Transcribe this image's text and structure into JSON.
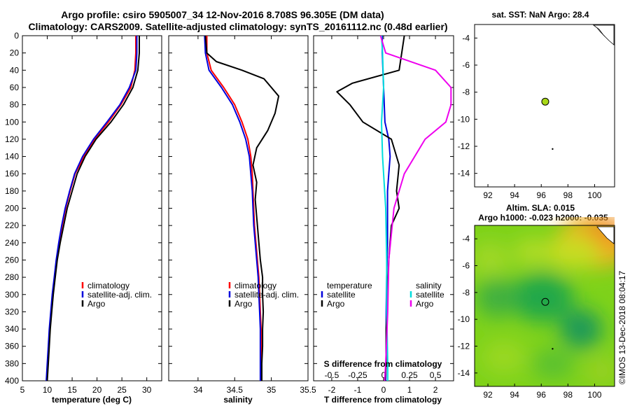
{
  "title": {
    "line1": "Argo profile: csiro 5905007_34 12-Nov-2016 8.708S 96.305E (DM data)",
    "line2": "Climatology: CARS2009. Satellite-adjusted climatology: synTS_20161112.nc (0.48d earlier)"
  },
  "colors": {
    "climatology": "#ff0000",
    "satellite": "#0000dd",
    "argo": "#000000",
    "sat_salinity": "#00dddd",
    "clim_salinity": "#ee00ee",
    "float_marker": "#a8d818"
  },
  "credit": "©IMOS 13-Dec-2018 08:04:17",
  "chart_data": [
    {
      "id": "temperature",
      "type": "line",
      "xlabel": "temperature (deg C)",
      "xlim": [
        5,
        33
      ],
      "xticks": [
        5,
        10,
        15,
        20,
        25,
        30
      ],
      "ylim": [
        0,
        400
      ],
      "yticks": [
        0,
        20,
        40,
        60,
        80,
        100,
        120,
        140,
        160,
        180,
        200,
        220,
        240,
        260,
        280,
        300,
        320,
        340,
        360,
        380,
        400
      ],
      "legend": [
        "climatology",
        "satellite-adj. clim.",
        "Argo"
      ],
      "series": [
        {
          "name": "climatology",
          "color": "#ff0000",
          "points": [
            [
              27.8,
              0
            ],
            [
              27.8,
              20
            ],
            [
              27.6,
              40
            ],
            [
              26.8,
              60
            ],
            [
              24.8,
              80
            ],
            [
              22.3,
              100
            ],
            [
              19.5,
              120
            ],
            [
              17.4,
              140
            ],
            [
              15.6,
              160
            ],
            [
              14.6,
              180
            ],
            [
              13.7,
              200
            ],
            [
              13.0,
              220
            ],
            [
              12.4,
              240
            ],
            [
              11.9,
              260
            ],
            [
              11.5,
              280
            ],
            [
              11.1,
              300
            ],
            [
              10.8,
              320
            ],
            [
              10.5,
              340
            ],
            [
              10.3,
              360
            ],
            [
              10.1,
              380
            ],
            [
              9.9,
              400
            ]
          ]
        },
        {
          "name": "satellite-adj. clim.",
          "color": "#0000dd",
          "points": [
            [
              28.0,
              0
            ],
            [
              28.0,
              20
            ],
            [
              27.8,
              40
            ],
            [
              26.5,
              60
            ],
            [
              24.6,
              80
            ],
            [
              22.0,
              100
            ],
            [
              19.3,
              120
            ],
            [
              17.1,
              140
            ],
            [
              15.5,
              160
            ],
            [
              14.5,
              180
            ],
            [
              13.6,
              200
            ],
            [
              12.9,
              220
            ],
            [
              12.3,
              240
            ],
            [
              11.8,
              260
            ],
            [
              11.4,
              280
            ],
            [
              11.0,
              300
            ],
            [
              10.7,
              320
            ],
            [
              10.4,
              340
            ],
            [
              10.2,
              360
            ],
            [
              10.0,
              380
            ],
            [
              9.8,
              400
            ]
          ]
        },
        {
          "name": "Argo",
          "color": "#000000",
          "points": [
            [
              28.5,
              0
            ],
            [
              28.5,
              20
            ],
            [
              28.2,
              40
            ],
            [
              27.2,
              60
            ],
            [
              25.3,
              80
            ],
            [
              22.8,
              100
            ],
            [
              19.8,
              120
            ],
            [
              17.6,
              140
            ],
            [
              16.0,
              160
            ],
            [
              15.0,
              180
            ],
            [
              14.0,
              200
            ],
            [
              13.3,
              220
            ],
            [
              12.6,
              240
            ],
            [
              12.0,
              260
            ],
            [
              11.6,
              280
            ],
            [
              11.2,
              300
            ],
            [
              10.9,
              320
            ],
            [
              10.6,
              340
            ],
            [
              10.4,
              360
            ],
            [
              10.2,
              380
            ],
            [
              10.0,
              400
            ]
          ]
        }
      ]
    },
    {
      "id": "salinity",
      "type": "line",
      "xlabel": "salinity",
      "xlim": [
        33.6,
        35.5
      ],
      "xticks": [
        34,
        34.5,
        35,
        35.5
      ],
      "ylim": [
        0,
        400
      ],
      "legend": [
        "climatology",
        "satellite-adj. clim.",
        "Argo"
      ],
      "series": [
        {
          "name": "climatology",
          "color": "#ff0000",
          "points": [
            [
              34.12,
              0
            ],
            [
              34.12,
              20
            ],
            [
              34.18,
              40
            ],
            [
              34.35,
              60
            ],
            [
              34.5,
              80
            ],
            [
              34.6,
              100
            ],
            [
              34.68,
              120
            ],
            [
              34.72,
              140
            ],
            [
              34.74,
              160
            ],
            [
              34.75,
              180
            ],
            [
              34.76,
              200
            ],
            [
              34.77,
              220
            ],
            [
              34.79,
              240
            ],
            [
              34.81,
              260
            ],
            [
              34.83,
              280
            ],
            [
              34.84,
              300
            ],
            [
              34.85,
              320
            ],
            [
              34.86,
              340
            ],
            [
              34.86,
              360
            ],
            [
              34.86,
              380
            ],
            [
              34.86,
              400
            ]
          ]
        },
        {
          "name": "satellite-adj. clim.",
          "color": "#0000dd",
          "points": [
            [
              34.09,
              0
            ],
            [
              34.1,
              20
            ],
            [
              34.15,
              40
            ],
            [
              34.32,
              60
            ],
            [
              34.47,
              80
            ],
            [
              34.57,
              100
            ],
            [
              34.65,
              120
            ],
            [
              34.7,
              140
            ],
            [
              34.72,
              160
            ],
            [
              34.74,
              180
            ],
            [
              34.75,
              200
            ],
            [
              34.76,
              220
            ],
            [
              34.78,
              240
            ],
            [
              34.8,
              260
            ],
            [
              34.82,
              280
            ],
            [
              34.83,
              300
            ],
            [
              34.84,
              320
            ],
            [
              34.85,
              340
            ],
            [
              34.85,
              360
            ],
            [
              34.85,
              380
            ],
            [
              34.85,
              400
            ]
          ]
        },
        {
          "name": "Argo",
          "color": "#000000",
          "points": [
            [
              34.1,
              0
            ],
            [
              34.12,
              20
            ],
            [
              34.25,
              30
            ],
            [
              34.6,
              40
            ],
            [
              34.9,
              50
            ],
            [
              35.1,
              70
            ],
            [
              35.05,
              90
            ],
            [
              34.95,
              110
            ],
            [
              34.8,
              130
            ],
            [
              34.75,
              150
            ],
            [
              34.8,
              170
            ],
            [
              34.78,
              190
            ],
            [
              34.8,
              210
            ],
            [
              34.83,
              240
            ],
            [
              34.85,
              260
            ],
            [
              34.88,
              280
            ],
            [
              34.88,
              300
            ],
            [
              34.89,
              320
            ],
            [
              34.88,
              340
            ],
            [
              34.88,
              360
            ],
            [
              34.87,
              380
            ],
            [
              34.87,
              400
            ]
          ]
        }
      ]
    },
    {
      "id": "difference",
      "type": "line",
      "xlabel": "T difference from climatology",
      "xlim": [
        -2.7,
        2.7
      ],
      "xticks": [
        -2,
        -1,
        0,
        1,
        2
      ],
      "xtick_labels": [
        "-2",
        "-1",
        "0",
        "1",
        "2"
      ],
      "s_axis_label": "S difference from climatology",
      "s_ticks": [
        -0.5,
        -0.25,
        0,
        0.25,
        0.5
      ],
      "s_tick_labels": [
        "-0.5",
        "-0.25",
        "0",
        "0.25",
        "0.5"
      ],
      "ylim": [
        0,
        400
      ],
      "legend_titles": [
        "temperature",
        "salinity"
      ],
      "legend": [
        "satellite",
        "Argo",
        "satellite",
        "Argo"
      ],
      "series": [
        {
          "name": "T satellite",
          "color": "#0000dd",
          "points": [
            [
              -0.05,
              0
            ],
            [
              -0.05,
              20
            ],
            [
              0.0,
              60
            ],
            [
              0.05,
              100
            ],
            [
              0.2,
              120
            ],
            [
              0.25,
              140
            ],
            [
              0.2,
              160
            ],
            [
              0.15,
              180
            ],
            [
              0.15,
              200
            ],
            [
              0.15,
              240
            ],
            [
              0.12,
              280
            ],
            [
              0.1,
              320
            ],
            [
              0.1,
              360
            ],
            [
              0.08,
              400
            ]
          ]
        },
        {
          "name": "T Argo",
          "color": "#000000",
          "points": [
            [
              0.8,
              0
            ],
            [
              0.7,
              20
            ],
            [
              0.6,
              40
            ],
            [
              -1.2,
              55
            ],
            [
              -1.8,
              65
            ],
            [
              -1.3,
              80
            ],
            [
              -0.8,
              100
            ],
            [
              0.3,
              120
            ],
            [
              0.6,
              150
            ],
            [
              0.5,
              180
            ],
            [
              0.6,
              200
            ],
            [
              0.3,
              220
            ],
            [
              0.2,
              260
            ],
            [
              0.15,
              300
            ],
            [
              0.1,
              340
            ],
            [
              0.1,
              380
            ],
            [
              0.05,
              400
            ]
          ]
        },
        {
          "name": "S satellite",
          "color": "#00dddd",
          "points": [
            [
              -0.02,
              0
            ],
            [
              -0.01,
              20
            ],
            [
              0.0,
              60
            ],
            [
              -0.02,
              100
            ],
            [
              -0.01,
              140
            ],
            [
              0.02,
              200
            ],
            [
              0.03,
              260
            ],
            [
              0.03,
              320
            ],
            [
              0.04,
              380
            ],
            [
              0.04,
              400
            ]
          ]
        },
        {
          "name": "S climatology",
          "color": "#ee00ee",
          "points": [
            [
              -0.03,
              0
            ],
            [
              0.02,
              20
            ],
            [
              0.5,
              40
            ],
            [
              0.65,
              60
            ],
            [
              0.65,
              80
            ],
            [
              0.6,
              100
            ],
            [
              0.4,
              120
            ],
            [
              0.2,
              160
            ],
            [
              0.1,
              200
            ],
            [
              0.05,
              260
            ],
            [
              0.04,
              320
            ],
            [
              0.02,
              380
            ],
            [
              0.01,
              400
            ]
          ]
        }
      ]
    },
    {
      "id": "map-sst",
      "type": "scatter",
      "title": "sat. SST: NaN Argo: 28.4",
      "xlim": [
        91,
        101.5
      ],
      "xticks": [
        92,
        94,
        96,
        98,
        100
      ],
      "ylim": [
        -15,
        -3
      ],
      "yticks": [
        -4,
        -6,
        -8,
        -10,
        -12,
        -14
      ],
      "float": {
        "lon": 96.3,
        "lat": -8.7
      }
    },
    {
      "id": "map-sla",
      "type": "heatmap",
      "title": "Altim. SLA: 0.015",
      "subtitle": "Argo h1000: -0.023 h2000: -0.035",
      "xlim": [
        91,
        101.5
      ],
      "xticks": [
        92,
        94,
        96,
        98,
        100
      ],
      "ylim": [
        -15,
        -3
      ],
      "yticks": [
        -4,
        -6,
        -8,
        -10,
        -12,
        -14
      ],
      "float": {
        "lon": 96.3,
        "lat": -8.7
      }
    }
  ]
}
